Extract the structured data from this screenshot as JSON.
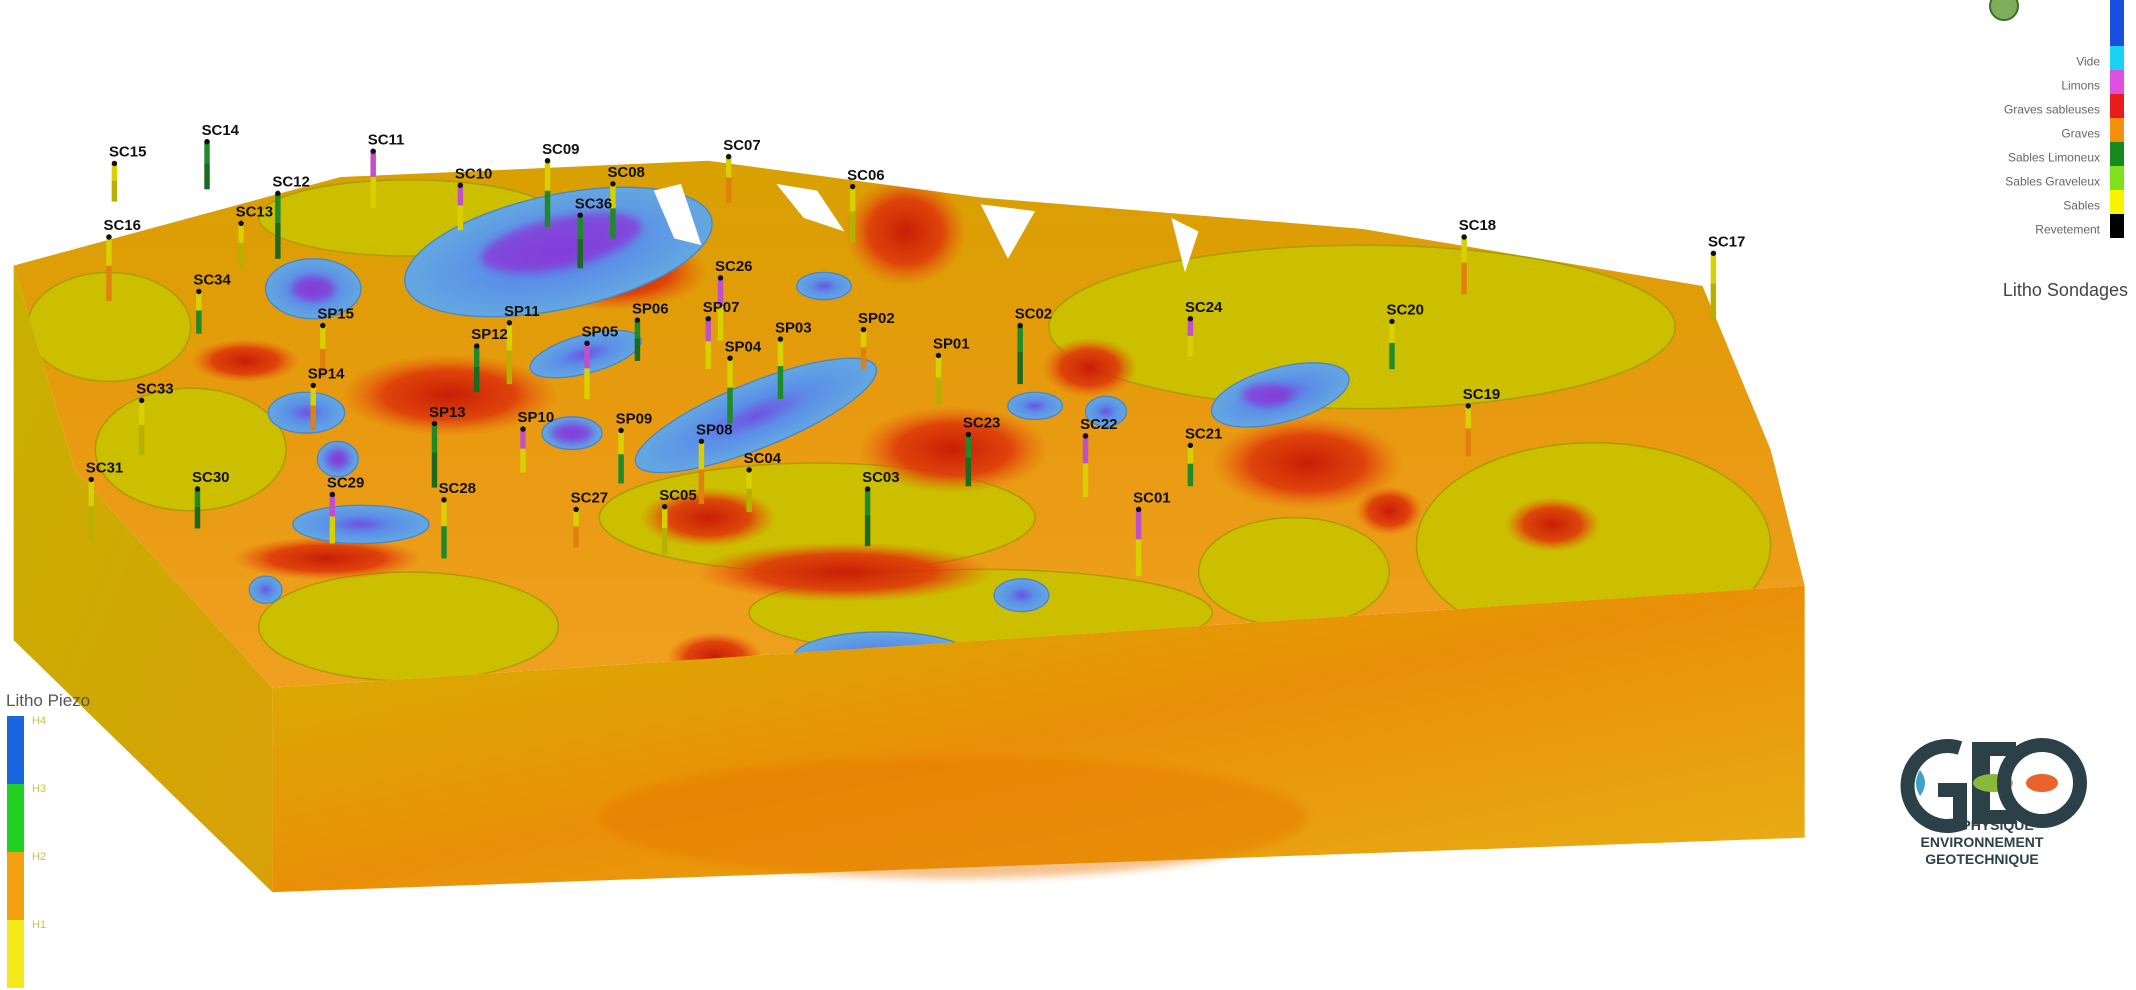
{
  "legend_sondages": {
    "title": "Litho Sondages",
    "items": [
      {
        "label": "Vide",
        "color": "#19d4f0"
      },
      {
        "label": "Limons",
        "color": "#e050e0"
      },
      {
        "label": "Graves sableuses",
        "color": "#e81c1c"
      },
      {
        "label": "Graves",
        "color": "#f5900a"
      },
      {
        "label": "Sables Limoneux",
        "color": "#178a1e"
      },
      {
        "label": "Sables Graveleux",
        "color": "#7fe01e"
      },
      {
        "label": "Sables",
        "color": "#f8f400"
      },
      {
        "label": "Revetement",
        "color": "#000000"
      }
    ]
  },
  "legend_piezo": {
    "title": "Litho Piezo",
    "items": [
      {
        "label": "H4",
        "color": "#1a66e0"
      },
      {
        "label": "H3",
        "color": "#22d022"
      },
      {
        "label": "H2",
        "color": "#f5a010"
      },
      {
        "label": "H1",
        "color": "#f2e81a"
      }
    ]
  },
  "logo": {
    "lines": [
      "GEOPHYSIQUE",
      "ENVIRONNEMENT",
      "GEOTECHNIQUE"
    ]
  },
  "boreholes": [
    "SC15",
    "SC14",
    "SC11",
    "SC09",
    "SC07",
    "SC06",
    "SC12",
    "SC10",
    "SC08",
    "SC16",
    "SC13",
    "SC36",
    "SC26",
    "SC34",
    "SP15",
    "SP11",
    "SP06",
    "SP07",
    "SP03",
    "SP02",
    "SP01",
    "SC02",
    "SC24",
    "SC20",
    "SC18",
    "SC17",
    "SP12",
    "SP05",
    "SP04",
    "SP14",
    "SC33",
    "SP13",
    "SP10",
    "SP09",
    "SP08",
    "SC04",
    "SC23",
    "SC22",
    "SC21",
    "SC19",
    "SC31",
    "SC30",
    "SC29",
    "SC28",
    "SC27",
    "SC05",
    "SC03",
    "SC01"
  ]
}
